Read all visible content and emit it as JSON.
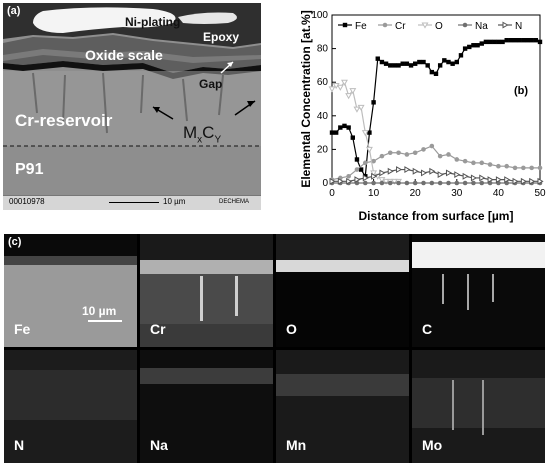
{
  "panel_a": {
    "tag": "(a)",
    "labels": {
      "ni_plating": "Ni-plating",
      "epoxy": "Epoxy",
      "oxide_scale": "Oxide scale",
      "gap": "Gap",
      "cr_reservoir": "Cr-reservoir",
      "mxcy_main": "M",
      "mxcy_sub1": "x",
      "mxcy_mid": "C",
      "mxcy_sub2": "Y",
      "p91": "P91"
    },
    "footer": {
      "image_id": "00010978",
      "scale": "10 µm",
      "logo": "DECHEMA"
    }
  },
  "panel_c": {
    "tag": "(c)",
    "scale_bar": "10 µm",
    "maps": [
      {
        "element": "Fe"
      },
      {
        "element": "Cr"
      },
      {
        "element": "O"
      },
      {
        "element": "C"
      },
      {
        "element": "N"
      },
      {
        "element": "Na"
      },
      {
        "element": "Mn"
      },
      {
        "element": "Mo"
      }
    ]
  },
  "chart_data": {
    "type": "line",
    "tag": "(b)",
    "xlabel": "Distance from surface [µm]",
    "ylabel": "Elemental Concentration [at.%]",
    "xlim": [
      0,
      50
    ],
    "ylim": [
      0,
      100
    ],
    "xticks": [
      0,
      10,
      20,
      30,
      40,
      50
    ],
    "yticks": [
      0,
      20,
      40,
      60,
      80,
      100
    ],
    "legend_position": "top",
    "series": [
      {
        "name": "Fe",
        "color": "#000000",
        "marker": "square-filled",
        "x": [
          0,
          1,
          2,
          3,
          4,
          5,
          6,
          7,
          8,
          9,
          10,
          11,
          12,
          13,
          14,
          15,
          16,
          17,
          18,
          19,
          20,
          21,
          22,
          23,
          24,
          25,
          26,
          27,
          28,
          29,
          30,
          31,
          32,
          33,
          34,
          35,
          36,
          37,
          38,
          39,
          40,
          41,
          42,
          43,
          44,
          45,
          46,
          47,
          48,
          49,
          50
        ],
        "y": [
          30,
          30,
          33,
          34,
          33,
          27,
          14,
          8,
          4,
          30,
          48,
          74,
          72,
          71,
          70,
          70,
          70,
          71,
          71,
          70,
          71,
          72,
          72,
          70,
          66,
          65,
          70,
          73,
          72,
          71,
          72,
          76,
          80,
          81,
          82,
          82,
          83,
          84,
          84,
          84,
          84,
          84,
          85,
          85,
          85,
          85,
          85,
          85,
          85,
          85,
          84
        ]
      },
      {
        "name": "Cr",
        "color": "#9a9a9a",
        "marker": "circle-filled",
        "x": [
          0,
          2,
          4,
          6,
          8,
          10,
          12,
          14,
          16,
          18,
          20,
          22,
          24,
          26,
          28,
          30,
          32,
          34,
          36,
          38,
          40,
          42,
          44,
          46,
          48,
          50
        ],
        "y": [
          2,
          3,
          4,
          8,
          12,
          13,
          16,
          18,
          18,
          17,
          18,
          20,
          22,
          16,
          17,
          14,
          13,
          12,
          12,
          11,
          10,
          10,
          9,
          9,
          9,
          9
        ]
      },
      {
        "name": "O",
        "color": "#bdbdbd",
        "marker": "triangle-down-open",
        "x": [
          0,
          1,
          2,
          3,
          4,
          5,
          6,
          7,
          8,
          9,
          10,
          11,
          12,
          13,
          14,
          15,
          16
        ],
        "y": [
          56,
          58,
          57,
          60,
          52,
          55,
          44,
          45,
          30,
          20,
          6,
          4,
          2,
          1,
          1,
          1,
          1
        ]
      },
      {
        "name": "Na",
        "color": "#707070",
        "marker": "circle-filled",
        "x": [
          0,
          2,
          4,
          6,
          8,
          10,
          12,
          14,
          16,
          18,
          20,
          22,
          24,
          26,
          28,
          30,
          32,
          34,
          36,
          38,
          40,
          42,
          44,
          46,
          48,
          50
        ],
        "y": [
          0,
          0,
          0,
          0,
          0,
          0,
          0,
          0,
          0,
          0,
          0,
          0,
          0,
          0,
          0,
          0,
          0,
          0,
          0,
          0,
          0,
          0,
          0,
          0,
          0,
          0
        ]
      },
      {
        "name": "N",
        "color": "#555555",
        "marker": "triangle-right-open",
        "x": [
          0,
          2,
          4,
          6,
          8,
          10,
          12,
          14,
          16,
          18,
          20,
          22,
          24,
          26,
          28,
          30,
          32,
          34,
          36,
          38,
          40,
          42,
          44,
          46,
          48,
          50
        ],
        "y": [
          1,
          1,
          1,
          2,
          3,
          4,
          6,
          7,
          8,
          8,
          7,
          6,
          7,
          5,
          6,
          5,
          4,
          3,
          3,
          2,
          2,
          2,
          1,
          1,
          1,
          1
        ]
      }
    ]
  }
}
